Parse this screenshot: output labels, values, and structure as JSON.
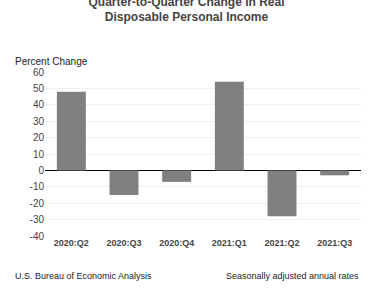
{
  "chart_data": {
    "type": "bar",
    "title": "Quarter-to-Quarter Change in Real\nDisposable Personal Income",
    "ylabel": "Percent Change",
    "categories": [
      "2020:Q2",
      "2020:Q3",
      "2020:Q4",
      "2021:Q1",
      "2021:Q2",
      "2021:Q3"
    ],
    "values": [
      48.0,
      -15.0,
      -7.0,
      54.0,
      -28.0,
      -3.0
    ],
    "color": "#808080",
    "ylim": [
      -40,
      60
    ],
    "yticks": [
      -40,
      -30,
      -20,
      -10,
      0,
      10,
      20,
      30,
      40,
      50,
      60
    ],
    "grid": true,
    "annotations": [
      "U.S. Bureau of Economic Analysis",
      "Seasonally adjusted annual rates"
    ]
  }
}
